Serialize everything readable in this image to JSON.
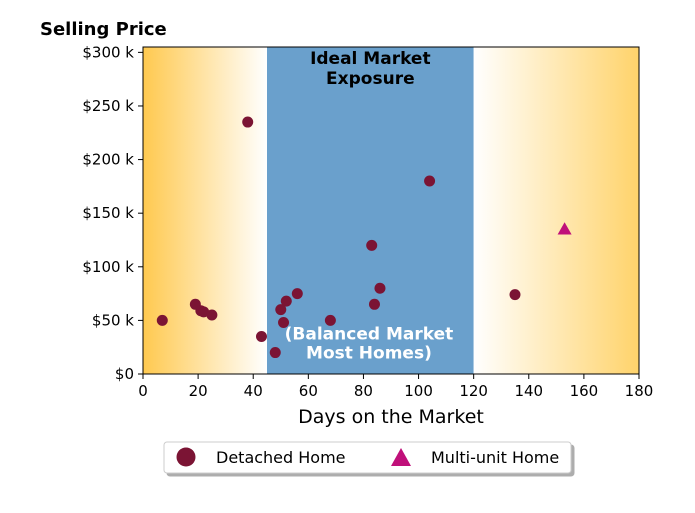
{
  "chart_data": {
    "type": "scatter",
    "title": "Selling Price",
    "xlabel": "Days on the Market",
    "ylabel": "",
    "xlim": [
      0,
      180
    ],
    "ylim": [
      0,
      305000
    ],
    "x_ticks": [
      0,
      20,
      40,
      60,
      80,
      100,
      120,
      140,
      160,
      180
    ],
    "y_ticks": [
      0,
      50000,
      100000,
      150000,
      200000,
      250000,
      300000
    ],
    "y_tick_labels": [
      "$0",
      "$50 k",
      "$100 k",
      "$150 k",
      "$200 k",
      "$250 k",
      "$300 k"
    ],
    "grid": false,
    "legend_position": "bottom-center",
    "regions": [
      {
        "label": "",
        "x_range": [
          0,
          45
        ],
        "style": "gradient",
        "colors": [
          "#ffc94f",
          "#ffffff"
        ]
      },
      {
        "label": "Ideal Market Exposure",
        "x_range": [
          45,
          120
        ],
        "style": "solid",
        "colors": [
          "#6aa0cc"
        ]
      },
      {
        "label": "",
        "x_range": [
          120,
          180
        ],
        "style": "gradient",
        "colors": [
          "#ffffff",
          "#ffd36b"
        ]
      }
    ],
    "annotations": [
      {
        "text": "(Balanced Market",
        "x": 82,
        "y": 38000,
        "color": "#ffffff"
      },
      {
        "text": "Most Homes)",
        "x": 82,
        "y": 20000,
        "color": "#ffffff"
      }
    ],
    "series": [
      {
        "name": "Detached Home",
        "marker": "circle",
        "color": "#7b1434",
        "points": [
          [
            7,
            50000
          ],
          [
            19,
            65000
          ],
          [
            21,
            59000
          ],
          [
            22,
            58000
          ],
          [
            25,
            55000
          ],
          [
            38,
            235000
          ],
          [
            43,
            35000
          ],
          [
            48,
            20000
          ],
          [
            50,
            60000
          ],
          [
            51,
            48000
          ],
          [
            52,
            68000
          ],
          [
            56,
            75000
          ],
          [
            68,
            50000
          ],
          [
            83,
            120000
          ],
          [
            84,
            65000
          ],
          [
            86,
            80000
          ],
          [
            104,
            180000
          ],
          [
            135,
            74000
          ]
        ]
      },
      {
        "name": "Multi-unit Home",
        "marker": "triangle",
        "color": "#c0107a",
        "points": [
          [
            153,
            135000
          ]
        ]
      }
    ]
  }
}
